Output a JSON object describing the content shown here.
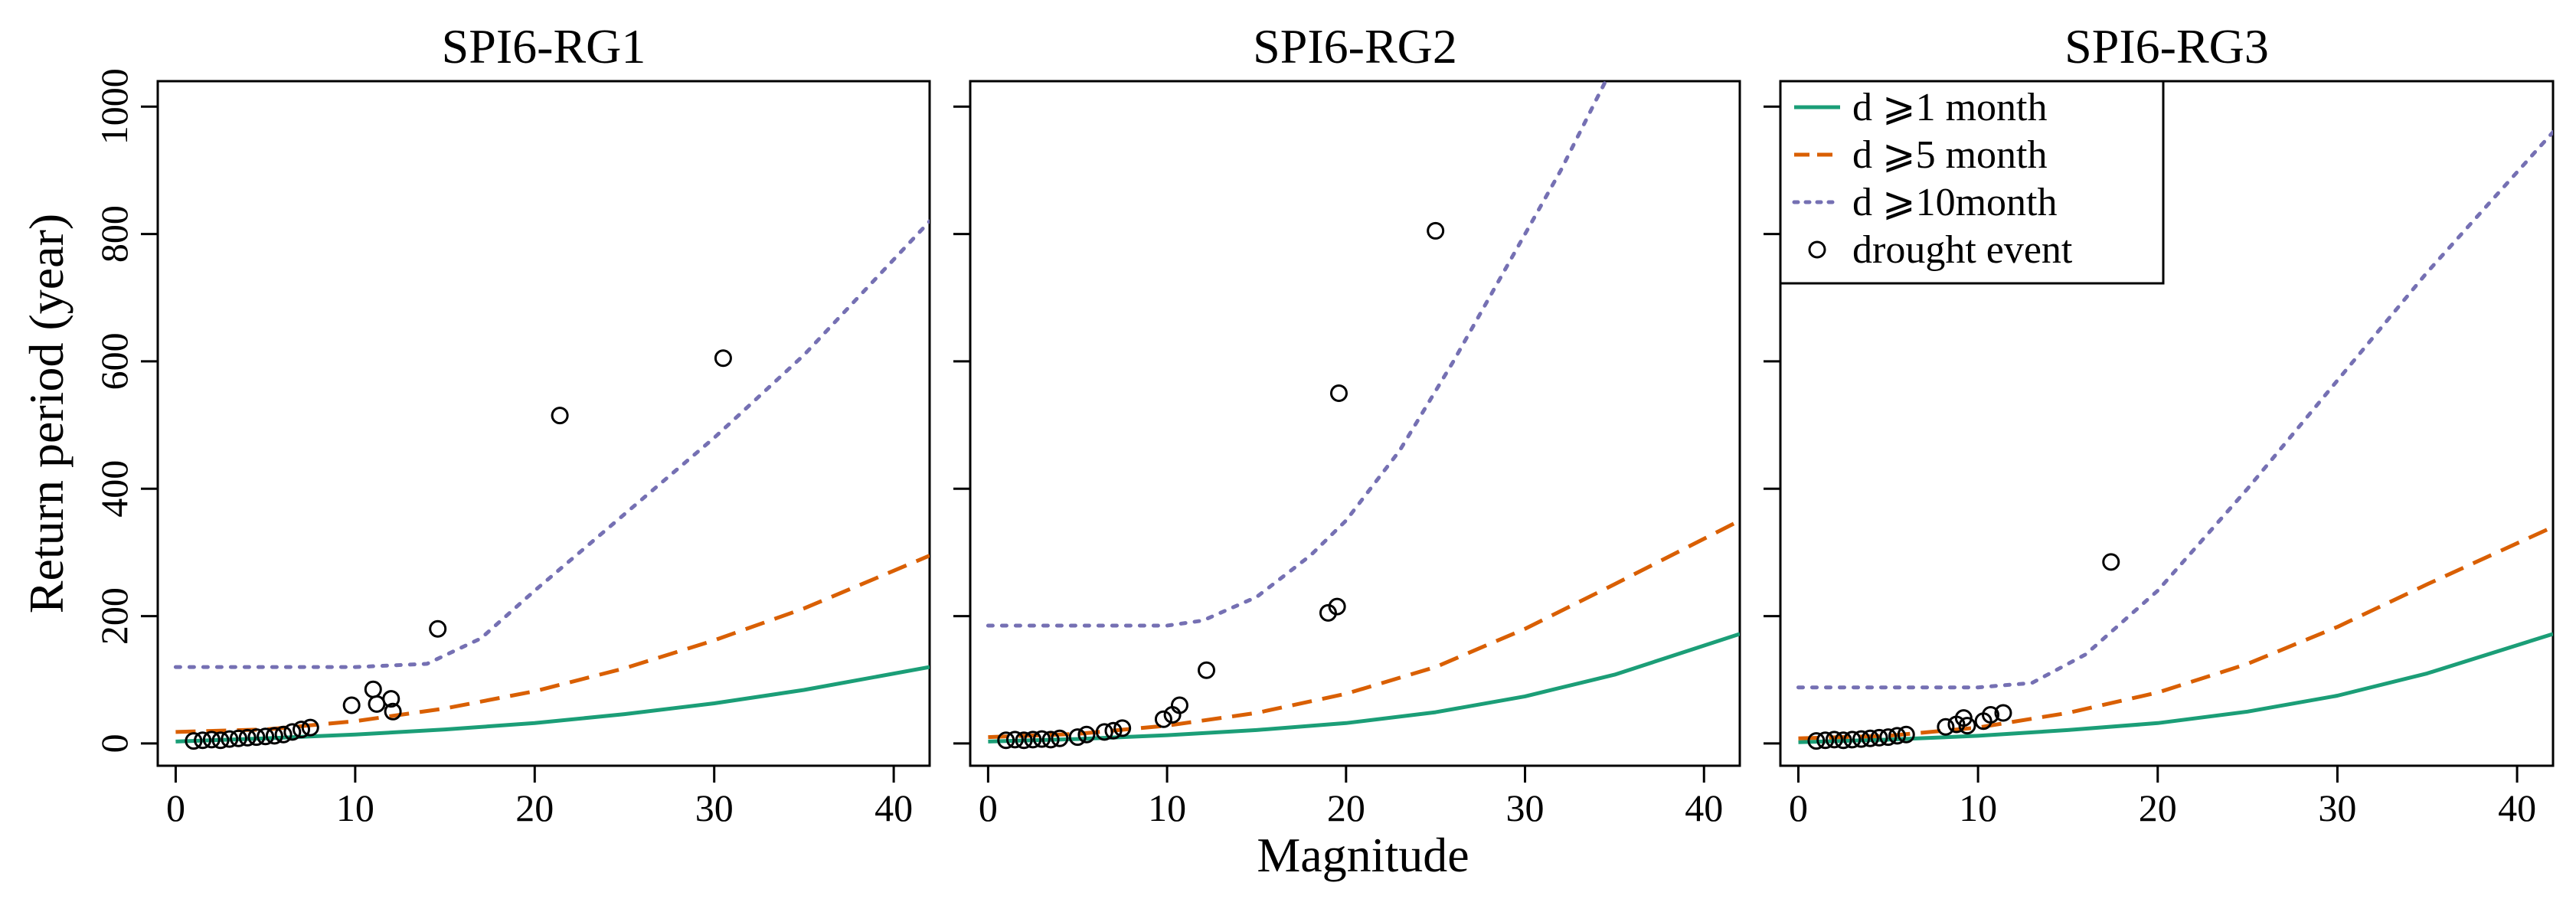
{
  "figure": {
    "xlabel": "Magnitude",
    "ylabel": "Return period (year)"
  },
  "legend": [
    {
      "key": "d1",
      "label": "d ⩾1 month",
      "symbol": "line",
      "color": "#1b9e77",
      "dash": "solid"
    },
    {
      "key": "d5",
      "label": "d ⩾5 month",
      "symbol": "line",
      "color": "#d95f02",
      "dash": "dashed"
    },
    {
      "key": "d10",
      "label": "d ⩾10month",
      "symbol": "line",
      "color": "#7570b3",
      "dash": "dotted"
    },
    {
      "key": "ev",
      "label": "drought event",
      "symbol": "circle",
      "color": "#000000"
    }
  ],
  "chart_data": [
    {
      "type": "line",
      "title": "SPI6-RG1",
      "xlim": [
        -1,
        42
      ],
      "ylim": [
        -35,
        1040
      ],
      "xticks": [
        0,
        10,
        20,
        30,
        40
      ],
      "yticks": [
        0,
        200,
        400,
        600,
        800,
        1000
      ],
      "series": [
        {
          "name": "d ⩾1 month",
          "x": [
            0,
            5,
            10,
            15,
            20,
            25,
            30,
            35,
            42
          ],
          "y": [
            3,
            8,
            14,
            22,
            32,
            46,
            63,
            84,
            120
          ]
        },
        {
          "name": "d ⩾5 month",
          "x": [
            0,
            5,
            10,
            15,
            20,
            25,
            30,
            35,
            42
          ],
          "y": [
            18,
            22,
            35,
            55,
            82,
            118,
            162,
            212,
            295
          ]
        },
        {
          "name": "d ⩾10month",
          "x": [
            0,
            5,
            10,
            14,
            17,
            20,
            25,
            30,
            35,
            42
          ],
          "y": [
            120,
            120,
            120,
            125,
            165,
            240,
            360,
            480,
            610,
            820
          ]
        }
      ],
      "events": {
        "x": [
          1,
          1.5,
          2,
          2.5,
          3,
          3.5,
          4,
          4.5,
          5,
          5.5,
          6,
          6.5,
          7,
          7.5,
          9.8,
          11,
          11.2,
          12,
          12.1,
          14.6,
          21.4,
          30.5
        ],
        "y": [
          4,
          5,
          6,
          5,
          7,
          8,
          9,
          10,
          11,
          12,
          14,
          18,
          22,
          25,
          60,
          85,
          62,
          70,
          50,
          180,
          515,
          605
        ]
      }
    },
    {
      "type": "line",
      "title": "SPI6-RG2",
      "xlim": [
        -1,
        42
      ],
      "ylim": [
        -35,
        1040
      ],
      "xticks": [
        0,
        10,
        20,
        30,
        40
      ],
      "yticks": [
        0,
        200,
        400,
        600,
        800,
        1000
      ],
      "series": [
        {
          "name": "d ⩾1 month",
          "x": [
            0,
            5,
            10,
            15,
            20,
            25,
            30,
            35,
            42
          ],
          "y": [
            3,
            7,
            13,
            21,
            32,
            49,
            74,
            108,
            172
          ]
        },
        {
          "name": "d ⩾5 month",
          "x": [
            0,
            5,
            10,
            15,
            20,
            25,
            30,
            35,
            42
          ],
          "y": [
            10,
            15,
            28,
            48,
            78,
            120,
            180,
            250,
            350
          ]
        },
        {
          "name": "d ⩾10month",
          "x": [
            0,
            5,
            10,
            12,
            15,
            18,
            20,
            23,
            26,
            29,
            32,
            34.5
          ],
          "y": [
            185,
            185,
            185,
            193,
            230,
            295,
            350,
            460,
            600,
            750,
            900,
            1040
          ]
        }
      ],
      "events": {
        "x": [
          1,
          1.5,
          2,
          2.5,
          3,
          3.5,
          4,
          5,
          5.5,
          6.5,
          7,
          7.5,
          9.8,
          10.3,
          10.7,
          12.2,
          19,
          19.5,
          19.6,
          25
        ],
        "y": [
          5,
          6,
          5,
          6,
          7,
          6,
          8,
          10,
          14,
          18,
          20,
          24,
          38,
          45,
          60,
          115,
          205,
          215,
          550,
          805
        ]
      }
    },
    {
      "type": "line",
      "title": "SPI6-RG3",
      "xlim": [
        -1,
        42
      ],
      "ylim": [
        -35,
        1040
      ],
      "xticks": [
        0,
        10,
        20,
        30,
        40
      ],
      "yticks": [
        0,
        200,
        400,
        600,
        800,
        1000
      ],
      "series": [
        {
          "name": "d ⩾1 month",
          "x": [
            0,
            5,
            10,
            15,
            20,
            25,
            30,
            35,
            42
          ],
          "y": [
            2,
            6,
            12,
            21,
            32,
            50,
            75,
            110,
            172
          ]
        },
        {
          "name": "d ⩾5 month",
          "x": [
            0,
            5,
            10,
            15,
            20,
            25,
            30,
            35,
            42
          ],
          "y": [
            8,
            12,
            25,
            48,
            80,
            125,
            183,
            250,
            340
          ]
        },
        {
          "name": "d ⩾10month",
          "x": [
            0,
            5,
            10,
            13,
            16,
            20,
            25,
            30,
            35,
            42
          ],
          "y": [
            88,
            88,
            88,
            95,
            140,
            240,
            400,
            570,
            740,
            960
          ]
        }
      ],
      "events": {
        "x": [
          1,
          1.5,
          2,
          2.5,
          3,
          3.5,
          4,
          4.5,
          5,
          5.5,
          6,
          8.2,
          8.8,
          9.2,
          9.4,
          10.3,
          10.7,
          11.4,
          17.4
        ],
        "y": [
          4,
          5,
          6,
          5,
          6,
          7,
          8,
          9,
          10,
          12,
          14,
          26,
          30,
          40,
          28,
          35,
          45,
          48,
          285
        ]
      }
    }
  ]
}
